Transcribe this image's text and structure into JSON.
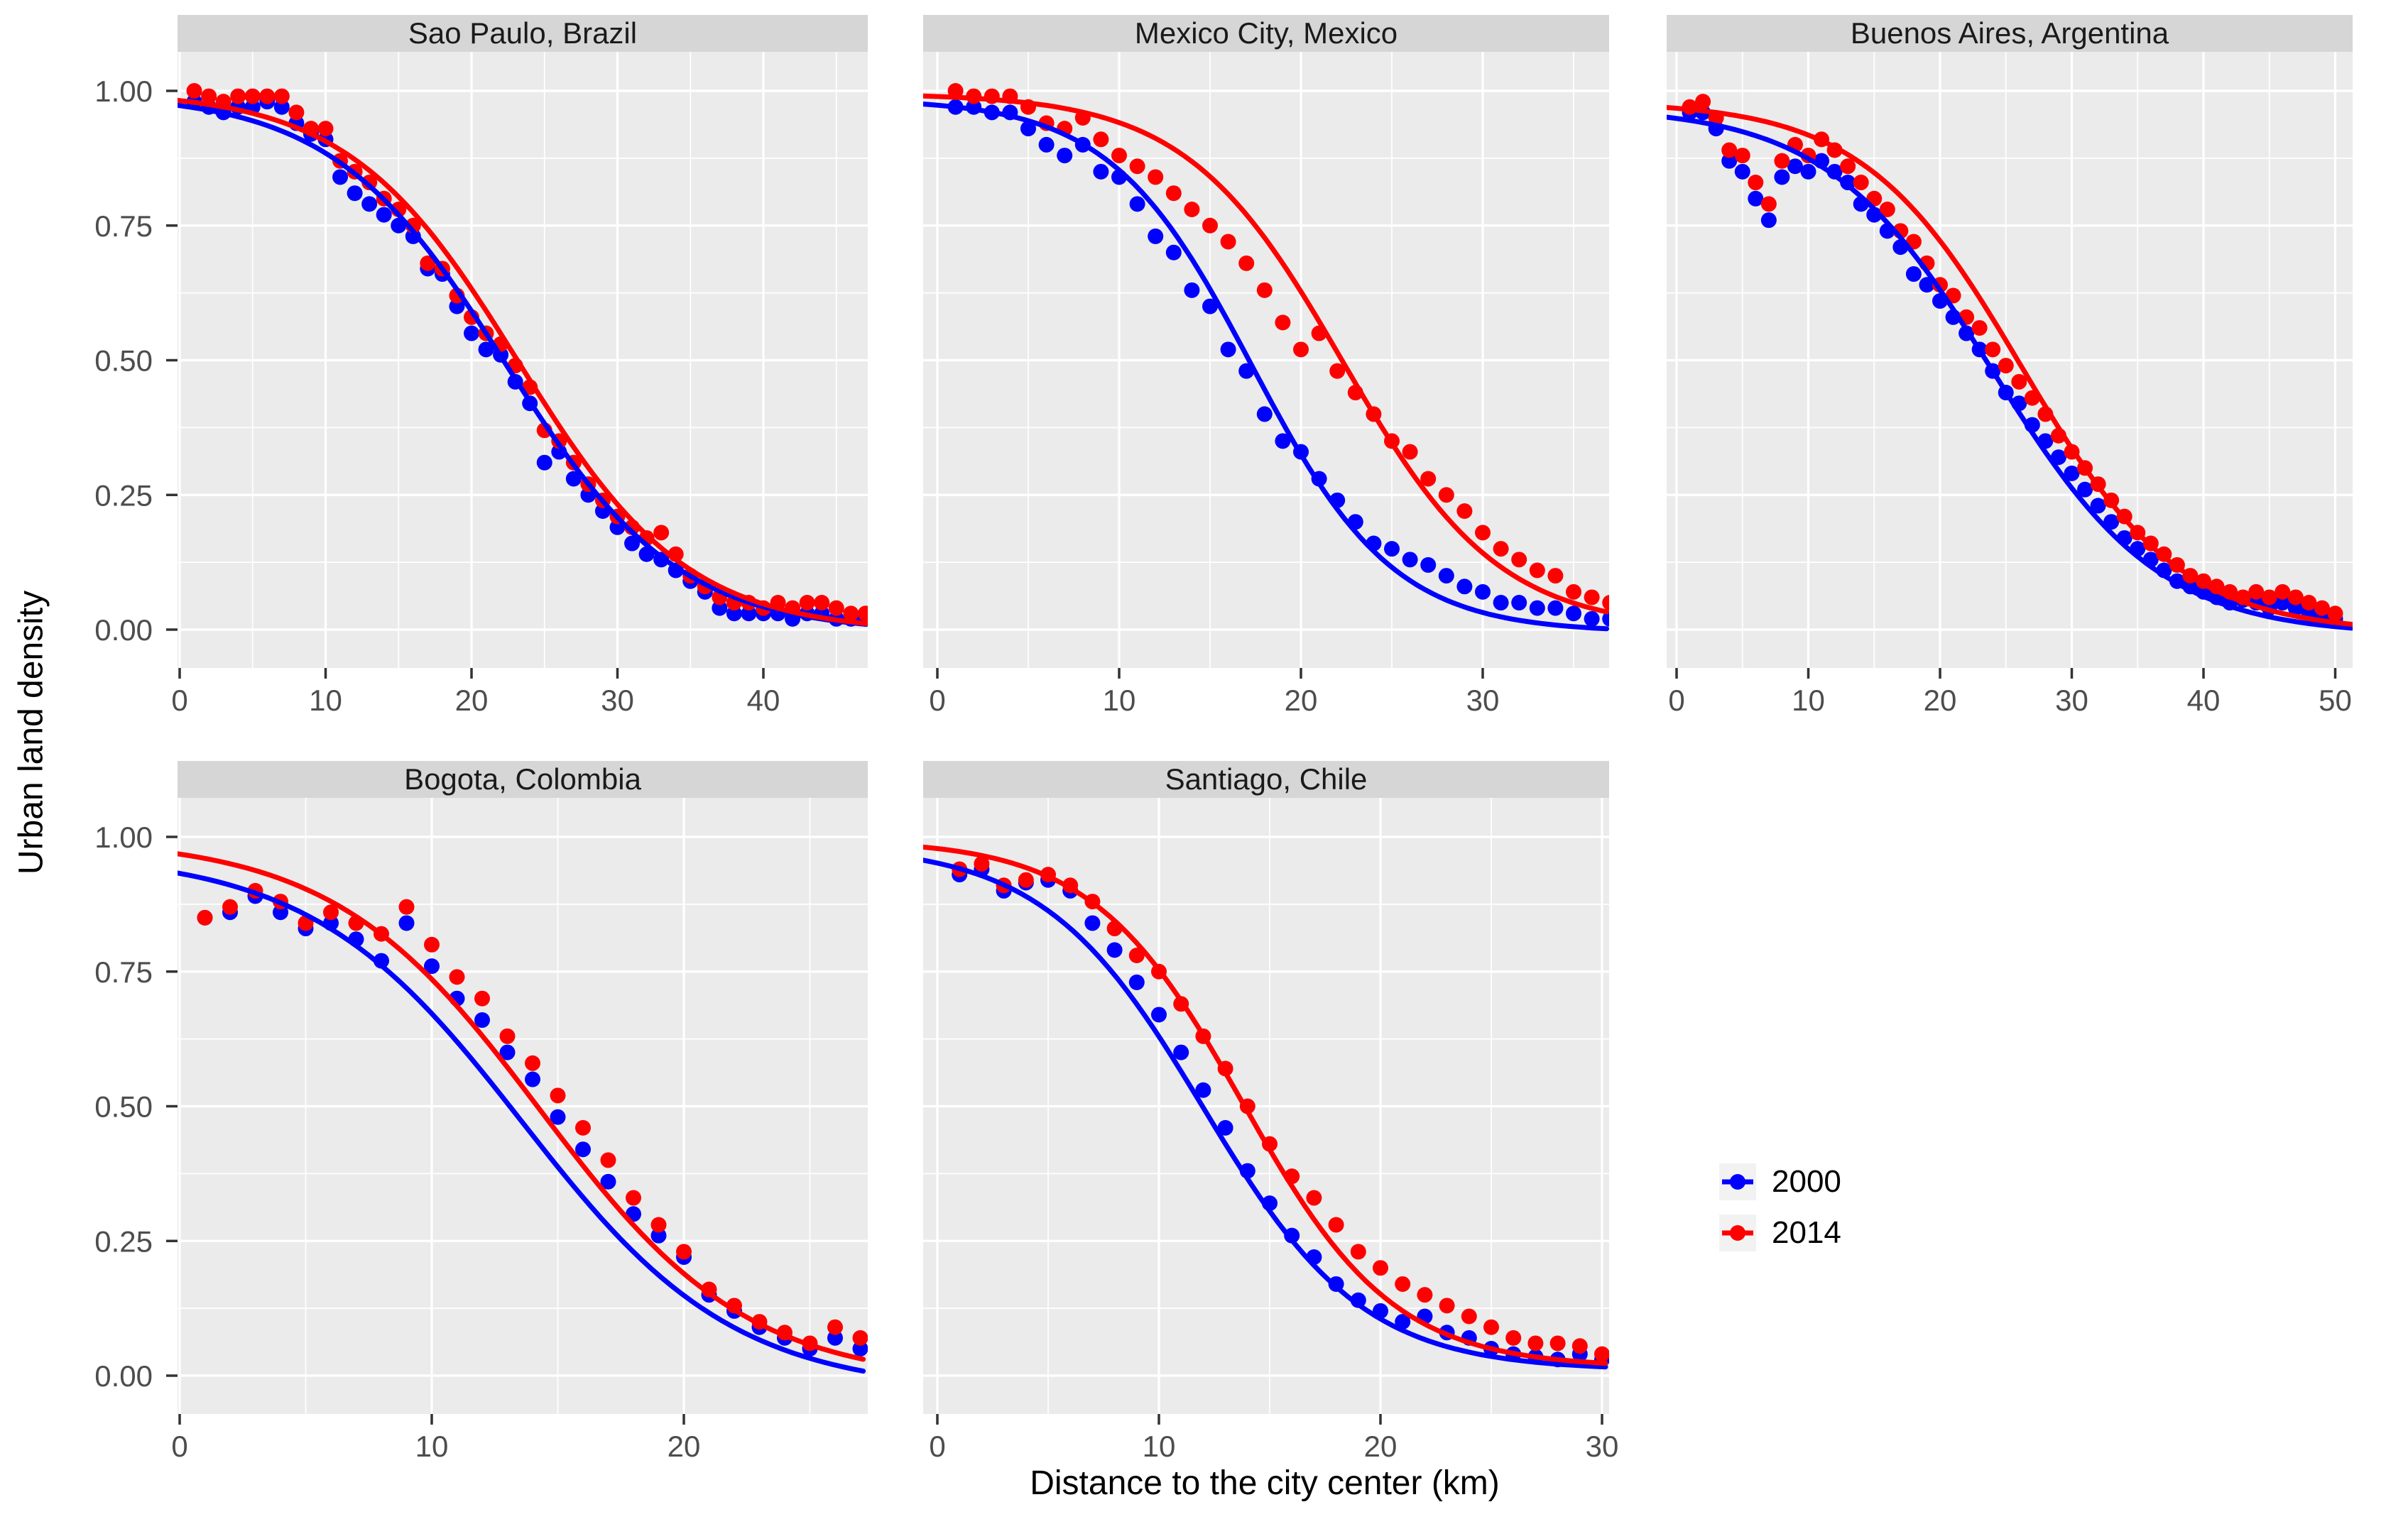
{
  "figure": {
    "kind": "faceted scatterplot with fitted smooth curves",
    "facets": 5
  },
  "axes": {
    "x_label": "Distance to the city center (km)",
    "y_label": "Urban land density",
    "y_ticks": [
      "0.00",
      "0.25",
      "0.50",
      "0.75",
      "1.00"
    ],
    "y_tick_values": [
      0,
      0.25,
      0.5,
      0.75,
      1.0
    ]
  },
  "legend": {
    "items": [
      {
        "label": "2000",
        "color": "#0000FF"
      },
      {
        "label": "2014",
        "color": "#FF0000"
      }
    ]
  },
  "style": {
    "panel_bg": "#EBEBEB",
    "strip_bg": "#D6D6D6",
    "grid_color": "#FFFFFF",
    "tick_color": "#333333",
    "tick_label_color": "#4D4D4D",
    "blue": "#0000FF",
    "red": "#FF0000"
  },
  "chart_data": [
    {
      "type": "scatter",
      "title": "Sao Paulo, Brazil",
      "xlabel": "Distance to the city center (km)",
      "ylabel": "Urban land density",
      "x_ticks": [
        0,
        10,
        20,
        30,
        40
      ],
      "x_range": [
        0,
        47.2
      ],
      "y_range": [
        0,
        1
      ],
      "x": {
        "from": 1,
        "to": 47,
        "step": 1
      },
      "series": [
        {
          "name": "2000",
          "color": "#0000FF",
          "y": [
            0.98,
            0.97,
            0.96,
            0.97,
            0.97,
            0.98,
            0.97,
            0.94,
            0.92,
            0.91,
            0.84,
            0.81,
            0.79,
            0.77,
            0.75,
            0.73,
            0.67,
            0.66,
            0.6,
            0.55,
            0.52,
            0.51,
            0.46,
            0.42,
            0.31,
            0.33,
            0.28,
            0.25,
            0.22,
            0.19,
            0.16,
            0.14,
            0.13,
            0.11,
            0.09,
            0.07,
            0.04,
            0.03,
            0.03,
            0.03,
            0.03,
            0.02,
            0.03,
            0.03,
            0.02,
            0.02,
            0.02
          ],
          "fit": {
            "model": "logistic",
            "a": 1.0,
            "x0": 22.3,
            "s": 5.9,
            "c": -0.005
          }
        },
        {
          "name": "2014",
          "color": "#FF0000",
          "y": [
            1.0,
            0.99,
            0.98,
            0.99,
            0.99,
            0.99,
            0.99,
            0.96,
            0.93,
            0.93,
            0.87,
            0.85,
            0.83,
            0.8,
            0.78,
            0.75,
            0.68,
            0.67,
            0.62,
            0.58,
            0.55,
            0.53,
            0.49,
            0.45,
            0.37,
            0.35,
            0.31,
            0.27,
            0.24,
            0.21,
            0.19,
            0.17,
            0.18,
            0.14,
            0.1,
            0.08,
            0.06,
            0.05,
            0.05,
            0.04,
            0.05,
            0.04,
            0.05,
            0.05,
            0.04,
            0.03,
            0.03
          ],
          "fit": {
            "model": "logistic",
            "a": 1.005,
            "x0": 23.2,
            "s": 5.8,
            "c": -0.005
          }
        }
      ]
    },
    {
      "type": "scatter",
      "title": "Mexico City, Mexico",
      "xlabel": "Distance to the city center (km)",
      "ylabel": "Urban land density",
      "x_ticks": [
        0,
        10,
        20,
        30
      ],
      "x_range": [
        0,
        37
      ],
      "y_range": [
        0,
        1
      ],
      "x": {
        "from": 1,
        "to": 37,
        "step": 1
      },
      "series": [
        {
          "name": "2000",
          "color": "#0000FF",
          "y": [
            0.97,
            0.97,
            0.96,
            0.96,
            0.93,
            0.9,
            0.88,
            0.9,
            0.85,
            0.84,
            0.79,
            0.73,
            0.7,
            0.63,
            0.6,
            0.52,
            0.48,
            0.4,
            0.35,
            0.33,
            0.28,
            0.24,
            0.2,
            0.16,
            0.15,
            0.13,
            0.12,
            0.1,
            0.08,
            0.07,
            0.05,
            0.05,
            0.04,
            0.04,
            0.03,
            0.02,
            0.02
          ],
          "fit": {
            "model": "logistic",
            "a": 0.99,
            "x0": 17.3,
            "s": 3.9,
            "c": -0.005
          }
        },
        {
          "name": "2014",
          "color": "#FF0000",
          "y": [
            1.0,
            0.99,
            0.99,
            0.99,
            0.97,
            0.94,
            0.93,
            0.95,
            0.91,
            0.88,
            0.86,
            0.84,
            0.81,
            0.78,
            0.75,
            0.72,
            0.68,
            0.63,
            0.57,
            0.52,
            0.55,
            0.48,
            0.44,
            0.4,
            0.35,
            0.33,
            0.28,
            0.25,
            0.22,
            0.18,
            0.15,
            0.13,
            0.11,
            0.1,
            0.07,
            0.06,
            0.05
          ],
          "fit": {
            "model": "logistic",
            "a": 0.995,
            "x0": 22.3,
            "s": 4.3,
            "c": 0
          }
        }
      ]
    },
    {
      "type": "scatter",
      "title": "Buenos Aires, Argentina",
      "xlabel": "Distance to the city center (km)",
      "ylabel": "Urban land density",
      "x_ticks": [
        0,
        10,
        20,
        30,
        40,
        50
      ],
      "x_range": [
        0,
        51.3
      ],
      "y_range": [
        0,
        1
      ],
      "x": {
        "from": 1,
        "to": 50,
        "step": 1
      },
      "series": [
        {
          "name": "2000",
          "color": "#0000FF",
          "y": [
            0.96,
            0.96,
            0.93,
            0.87,
            0.85,
            0.8,
            0.76,
            0.84,
            0.86,
            0.85,
            0.87,
            0.85,
            0.83,
            0.79,
            0.77,
            0.74,
            0.71,
            0.66,
            0.64,
            0.61,
            0.58,
            0.55,
            0.52,
            0.48,
            0.44,
            0.42,
            0.38,
            0.35,
            0.32,
            0.29,
            0.26,
            0.23,
            0.2,
            0.17,
            0.15,
            0.13,
            0.11,
            0.09,
            0.08,
            0.07,
            0.06,
            0.05,
            0.055,
            0.05,
            0.04,
            0.05,
            0.04,
            0.03,
            0.03,
            0.02
          ],
          "fit": {
            "model": "logistic",
            "a": 0.98,
            "x0": 24.0,
            "s": 6.3,
            "c": -0.01
          }
        },
        {
          "name": "2014",
          "color": "#FF0000",
          "y": [
            0.97,
            0.98,
            0.95,
            0.89,
            0.88,
            0.83,
            0.79,
            0.87,
            0.9,
            0.88,
            0.91,
            0.89,
            0.86,
            0.83,
            0.8,
            0.78,
            0.74,
            0.72,
            0.68,
            0.64,
            0.62,
            0.58,
            0.56,
            0.52,
            0.49,
            0.46,
            0.43,
            0.4,
            0.36,
            0.33,
            0.3,
            0.27,
            0.24,
            0.21,
            0.18,
            0.16,
            0.14,
            0.12,
            0.1,
            0.09,
            0.08,
            0.07,
            0.06,
            0.07,
            0.06,
            0.07,
            0.06,
            0.05,
            0.04,
            0.03
          ],
          "fit": {
            "model": "logistic",
            "a": 0.985,
            "x0": 26.2,
            "s": 6.0,
            "c": -0.005
          }
        }
      ]
    },
    {
      "type": "scatter",
      "title": "Bogota, Colombia",
      "xlabel": "Distance to the city center (km)",
      "ylabel": "Urban land density",
      "x_ticks": [
        0,
        10,
        20
      ],
      "x_range": [
        0,
        27.4
      ],
      "y_range": [
        0,
        1
      ],
      "x": {
        "from": 1,
        "to": 27,
        "step": 1
      },
      "series": [
        {
          "name": "2000",
          "color": "#0000FF",
          "y": [
            0.85,
            0.86,
            0.89,
            0.86,
            0.83,
            0.84,
            0.81,
            0.77,
            0.84,
            0.76,
            0.7,
            0.66,
            0.6,
            0.55,
            0.48,
            0.42,
            0.36,
            0.3,
            0.26,
            0.22,
            0.15,
            0.12,
            0.09,
            0.07,
            0.05,
            0.07,
            0.05
          ],
          "fit": {
            "model": "logistic",
            "a": 1.0,
            "x0": 13.6,
            "s": 4.2,
            "c": -0.03
          }
        },
        {
          "name": "2014",
          "color": "#FF0000",
          "y": [
            0.85,
            0.87,
            0.9,
            0.88,
            0.84,
            0.86,
            0.84,
            0.82,
            0.87,
            0.8,
            0.74,
            0.7,
            0.63,
            0.58,
            0.52,
            0.46,
            0.4,
            0.33,
            0.28,
            0.23,
            0.16,
            0.13,
            0.1,
            0.08,
            0.06,
            0.09,
            0.07
          ],
          "fit": {
            "model": "logistic",
            "a": 1.01,
            "x0": 14.3,
            "s": 4.1,
            "c": -0.012
          }
        }
      ]
    },
    {
      "type": "scatter",
      "title": "Santiago, Chile",
      "xlabel": "Distance to the city center (km)",
      "ylabel": "Urban land density",
      "x_ticks": [
        0,
        10,
        20,
        30
      ],
      "x_range": [
        0,
        30.3
      ],
      "y_range": [
        0,
        1
      ],
      "x": {
        "from": 1,
        "to": 30,
        "step": 1
      },
      "series": [
        {
          "name": "2000",
          "color": "#0000FF",
          "y": [
            0.93,
            0.94,
            0.9,
            0.915,
            0.92,
            0.9,
            0.84,
            0.79,
            0.73,
            0.67,
            0.6,
            0.53,
            0.46,
            0.38,
            0.32,
            0.26,
            0.22,
            0.17,
            0.14,
            0.12,
            0.1,
            0.11,
            0.08,
            0.07,
            0.05,
            0.04,
            0.035,
            0.03,
            0.04,
            0.03
          ],
          "fit": {
            "model": "logistic",
            "a": 0.975,
            "x0": 12.0,
            "s": 3.6,
            "c": 0.01
          }
        },
        {
          "name": "2014",
          "color": "#FF0000",
          "y": [
            0.94,
            0.95,
            0.91,
            0.92,
            0.93,
            0.91,
            0.88,
            0.83,
            0.78,
            0.75,
            0.69,
            0.63,
            0.57,
            0.5,
            0.43,
            0.37,
            0.33,
            0.28,
            0.23,
            0.2,
            0.17,
            0.15,
            0.13,
            0.11,
            0.09,
            0.07,
            0.06,
            0.06,
            0.055,
            0.04
          ],
          "fit": {
            "model": "logistic",
            "a": 0.98,
            "x0": 13.8,
            "s": 3.4,
            "c": 0.015
          }
        }
      ]
    }
  ]
}
